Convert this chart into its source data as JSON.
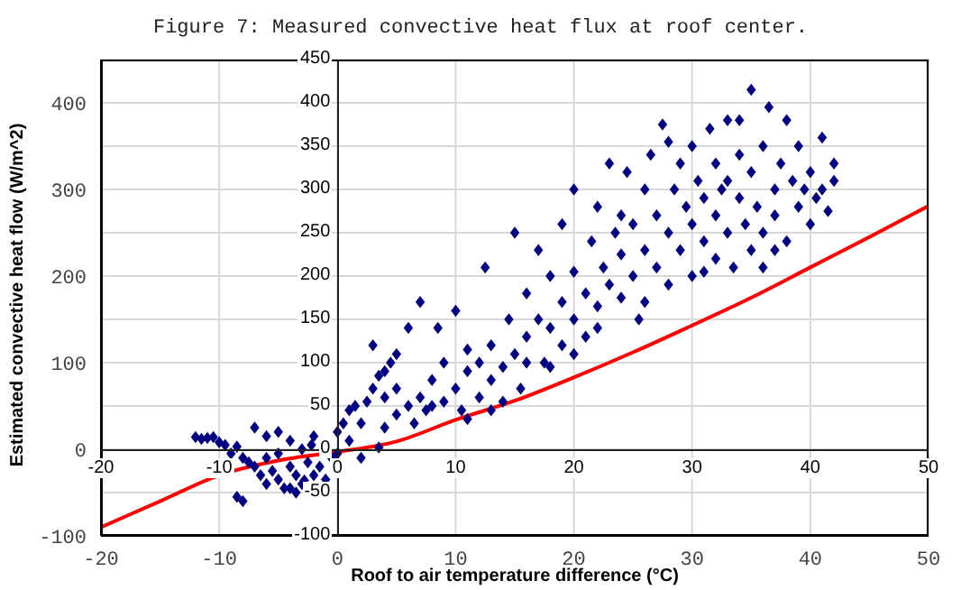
{
  "chart_data": {
    "type": "scatter",
    "title": "Figure 7: Measured convective heat flux at roof center.",
    "xlabel": "Roof to air temperature difference (°C)",
    "ylabel": "Estimated convective heat flow (W/m^2)",
    "xlim": [
      -20,
      50
    ],
    "xticks": [
      -20,
      -10,
      0,
      10,
      20,
      30,
      40,
      50
    ],
    "ylim": [
      -100,
      450
    ],
    "yticks": [
      -100,
      0,
      100,
      200,
      300,
      400
    ],
    "x2lim": [
      -20,
      50
    ],
    "x2ticks": [
      -20,
      -10,
      0,
      10,
      20,
      30,
      40,
      50
    ],
    "y2lim": [
      -100,
      450
    ],
    "y2ticks": [
      -100,
      -50,
      0,
      50,
      100,
      150,
      200,
      250,
      300,
      350,
      400,
      450
    ],
    "grid": true,
    "marker": "diamond",
    "series": [
      {
        "type": "scatter",
        "color": "#000080",
        "x": [
          -12,
          -11.5,
          -11,
          -10.5,
          -10,
          -9.5,
          -9,
          -8.5,
          -8,
          -7.5,
          -7,
          -7,
          -6.5,
          -6,
          -6,
          -5.5,
          -5,
          -5,
          -4.5,
          -4,
          -4,
          -3.5,
          -3,
          -3,
          -2.5,
          -2,
          -2,
          -1.5,
          -2.2,
          -1,
          -0.5,
          0,
          0,
          0.5,
          1,
          1,
          -8,
          -8.5,
          2,
          3.5,
          -6,
          -5,
          -4,
          -3.5,
          -2.8,
          1.5,
          2,
          2.5,
          3,
          3,
          3.5,
          4,
          4,
          4.5,
          5,
          5,
          6,
          6,
          6.5,
          7,
          7,
          7.5,
          8,
          8.5,
          9,
          9,
          10,
          10,
          10.5,
          11,
          11,
          12,
          12,
          12.5,
          13,
          13,
          14,
          14,
          14.5,
          15,
          15,
          15.5,
          16,
          16,
          17,
          17,
          17.5,
          18,
          18,
          19,
          19,
          19,
          20,
          20,
          20,
          21,
          21,
          21.5,
          22,
          22,
          22.5,
          23,
          23,
          23.5,
          24,
          24,
          24.5,
          25,
          25,
          25.5,
          26,
          26,
          26.5,
          27,
          27,
          27.5,
          28,
          28,
          28.5,
          29,
          29,
          29.5,
          30,
          30,
          30,
          30.5,
          31,
          31,
          31.5,
          32,
          32,
          32,
          32.5,
          33,
          33,
          33.5,
          34,
          34,
          34.5,
          35,
          35,
          35,
          35.5,
          36,
          36,
          36.5,
          37,
          37,
          37.5,
          38,
          38,
          38.5,
          39,
          39,
          39.5,
          40,
          40,
          40.5,
          41,
          41,
          41.5,
          42,
          42,
          37,
          36,
          34,
          33,
          31,
          28,
          26,
          24,
          22,
          20,
          18,
          16,
          13,
          11,
          8,
          5,
          4
        ],
        "values": [
          14,
          12,
          13,
          14,
          8,
          5,
          -5,
          3,
          -10,
          -15,
          25,
          -20,
          -30,
          15,
          -40,
          -25,
          -35,
          20,
          -45,
          -20,
          10,
          -30,
          -40,
          0,
          -15,
          -30,
          15,
          -20,
          5,
          -35,
          -10,
          20,
          -5,
          30,
          10,
          45,
          -60,
          -55,
          -10,
          2,
          -10,
          -5,
          -45,
          -50,
          -36,
          50,
          30,
          55,
          70,
          120,
          85,
          90,
          60,
          100,
          70,
          40,
          50,
          140,
          30,
          60,
          170,
          45,
          80,
          140,
          55,
          100,
          70,
          160,
          45,
          90,
          115,
          60,
          100,
          210,
          80,
          120,
          95,
          55,
          150,
          110,
          250,
          70,
          130,
          180,
          150,
          230,
          100,
          140,
          200,
          120,
          170,
          260,
          150,
          205,
          300,
          180,
          130,
          240,
          165,
          280,
          210,
          190,
          330,
          250,
          175,
          225,
          320,
          200,
          260,
          150,
          230,
          300,
          340,
          210,
          270,
          375,
          250,
          190,
          300,
          230,
          330,
          280,
          200,
          260,
          350,
          310,
          240,
          290,
          370,
          220,
          270,
          330,
          300,
          250,
          380,
          210,
          290,
          340,
          260,
          415,
          320,
          230,
          280,
          350,
          250,
          395,
          300,
          270,
          330,
          380,
          240,
          310,
          280,
          350,
          300,
          260,
          320,
          290,
          360,
          300,
          275,
          310,
          330,
          230,
          210,
          380,
          310,
          205,
          355,
          170,
          270,
          140,
          110,
          95,
          100,
          45,
          35,
          50,
          110,
          25
        ]
      },
      {
        "type": "line",
        "color": "#ff0000",
        "marker": "none",
        "x": [
          -20,
          -15,
          -10,
          -5,
          0,
          5,
          10,
          15,
          20,
          25,
          30,
          35,
          40,
          45,
          50
        ],
        "values": [
          -90,
          -60,
          -30,
          -13,
          -3,
          9,
          34,
          56,
          83,
          112,
          143,
          175,
          210,
          245,
          281
        ]
      }
    ]
  }
}
